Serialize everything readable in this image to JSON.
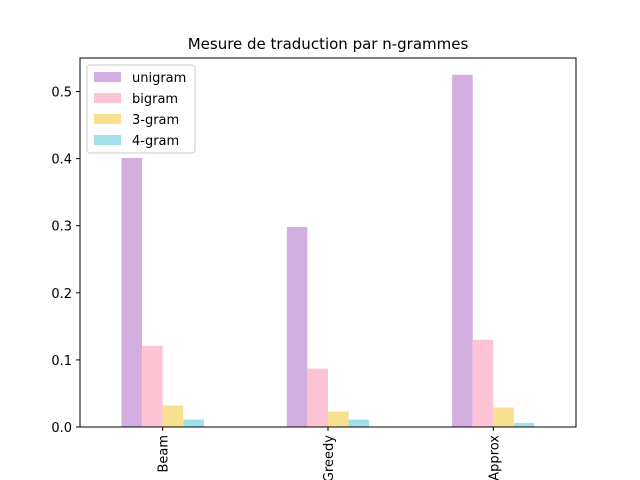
{
  "chart_data": {
    "type": "bar",
    "title": "Mesure de traduction par n-grammes",
    "xlabel": "",
    "ylabel": "",
    "categories": [
      "Beam",
      "Greedy",
      "Approx"
    ],
    "series": [
      {
        "name": "unigram",
        "color": "#d3aee0",
        "values": [
          0.401,
          0.298,
          0.525
        ]
      },
      {
        "name": "bigram",
        "color": "#fdc4d6",
        "values": [
          0.121,
          0.087,
          0.13
        ]
      },
      {
        "name": "3-gram",
        "color": "#f7e18f",
        "values": [
          0.032,
          0.023,
          0.029
        ]
      },
      {
        "name": "4-gram",
        "color": "#9fe0ea",
        "values": [
          0.011,
          0.011,
          0.006
        ]
      }
    ],
    "ylim": [
      0,
      0.55
    ],
    "yticks": [
      0.0,
      0.1,
      0.2,
      0.3,
      0.4,
      0.5
    ],
    "ytick_labels": [
      "0.0",
      "0.1",
      "0.2",
      "0.3",
      "0.4",
      "0.5"
    ],
    "xtick_rotation": "vertical",
    "grid": false,
    "legend_position": "upper-left"
  }
}
